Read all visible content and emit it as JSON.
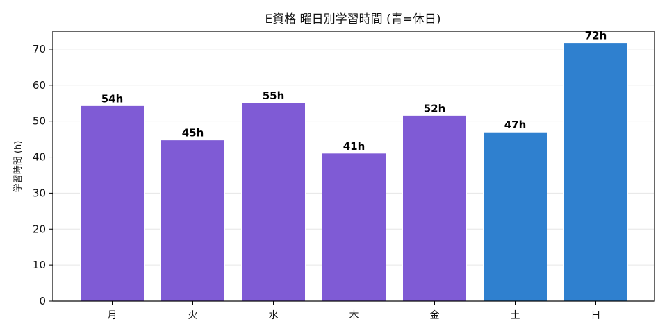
{
  "chart_data": {
    "type": "bar",
    "title": "E資格 曜日別学習時間 (青=休日)",
    "xlabel": "",
    "ylabel": "学習時間 (h)",
    "categories": [
      "月",
      "火",
      "水",
      "木",
      "金",
      "土",
      "日"
    ],
    "values": [
      54.3,
      44.8,
      55.1,
      41.1,
      51.6,
      47.0,
      71.8
    ],
    "data_labels": [
      "54h",
      "45h",
      "55h",
      "41h",
      "52h",
      "47h",
      "72h"
    ],
    "holiday": [
      false,
      false,
      false,
      false,
      false,
      true,
      true
    ],
    "ylim": [
      0,
      75
    ],
    "yticks": [
      0,
      10,
      20,
      30,
      40,
      50,
      60,
      70
    ],
    "grid": true,
    "colors": {
      "weekday": "#7f5bd5",
      "holiday": "#2f80cf"
    }
  }
}
